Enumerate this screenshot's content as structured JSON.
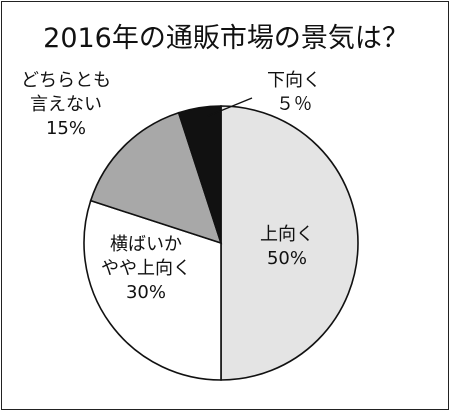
{
  "chart_data": {
    "type": "pie",
    "title": "2016年の通販市場の景気は？",
    "start_angle_deg": 0,
    "direction": "clockwise",
    "slices": [
      {
        "id": "up",
        "label_lines": [
          "上向く",
          "50%"
        ],
        "value": 50,
        "color": "#e4e4e4"
      },
      {
        "id": "flat",
        "label_lines": [
          "横ばいか",
          "やや上向く",
          "30%"
        ],
        "value": 30,
        "color": "#ffffff"
      },
      {
        "id": "unknown",
        "label_lines": [
          "どちらとも",
          "言えない",
          "15%"
        ],
        "value": 15,
        "color": "#a8a8a8"
      },
      {
        "id": "down",
        "label_lines": [
          "下向く",
          "５％"
        ],
        "value": 5,
        "color": "#111111"
      }
    ]
  }
}
